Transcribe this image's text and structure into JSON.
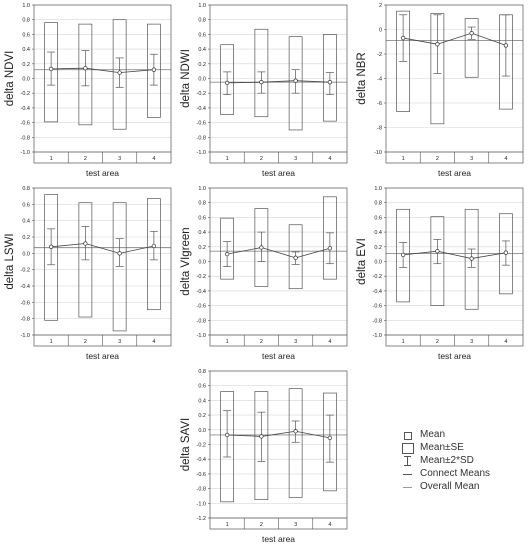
{
  "chart_data": [
    {
      "type": "box",
      "ylabel": "delta NDVI",
      "xlabel": "test area",
      "categories": [
        "1",
        "2",
        "3",
        "4"
      ],
      "yticks": [
        "1.0",
        "0.8",
        "0.6",
        "0.4",
        "0.2",
        "0.0",
        "-0.2",
        "-0.4",
        "-0.6",
        "-0.8",
        "-1.0"
      ],
      "ylim": [
        -1.0,
        1.0
      ],
      "mean": [
        0.13,
        0.14,
        0.08,
        0.12
      ],
      "se_low": [
        -0.09,
        -0.1,
        -0.12,
        -0.09
      ],
      "se_high": [
        0.36,
        0.38,
        0.28,
        0.33
      ],
      "sd_low": [
        -0.59,
        -0.63,
        -0.69,
        -0.53
      ],
      "sd_high": [
        0.76,
        0.74,
        0.8,
        0.74
      ],
      "overall_mean": 0.12
    },
    {
      "type": "box",
      "ylabel": "delta NDWI",
      "xlabel": "test area",
      "categories": [
        "1",
        "2",
        "3",
        "4"
      ],
      "yticks": [
        "1.0",
        "0.8",
        "0.6",
        "0.4",
        "0.2",
        "0.0",
        "-0.2",
        "-0.4",
        "-0.6",
        "-0.8",
        "-1.0"
      ],
      "ylim": [
        -1.0,
        1.0
      ],
      "mean": [
        -0.06,
        -0.05,
        -0.03,
        -0.05
      ],
      "se_low": [
        -0.22,
        -0.2,
        -0.2,
        -0.22
      ],
      "se_high": [
        0.09,
        0.09,
        0.12,
        0.08
      ],
      "sd_low": [
        -0.49,
        -0.52,
        -0.7,
        -0.58
      ],
      "sd_high": [
        0.46,
        0.67,
        0.57,
        0.6
      ],
      "overall_mean": -0.05
    },
    {
      "type": "box",
      "ylabel": "delta NBR",
      "xlabel": "test area",
      "categories": [
        "1",
        "2",
        "3",
        "4"
      ],
      "yticks": [
        "2",
        "0",
        "-2",
        "-4",
        "-6",
        "-8",
        "-10"
      ],
      "ylim": [
        -10,
        2
      ],
      "mean": [
        -0.7,
        -1.2,
        -0.3,
        -1.3
      ],
      "se_low": [
        -2.6,
        -3.6,
        -0.8,
        -3.8
      ],
      "se_high": [
        1.2,
        1.2,
        0.2,
        1.2
      ],
      "sd_low": [
        -6.7,
        -7.7,
        -3.9,
        -6.5
      ],
      "sd_high": [
        1.5,
        1.3,
        0.9,
        1.2
      ],
      "overall_mean": -0.9
    },
    {
      "type": "box",
      "ylabel": "delta LSWI",
      "xlabel": "test area",
      "categories": [
        "1",
        "2",
        "3",
        "4"
      ],
      "yticks": [
        "0.8",
        "0.6",
        "0.4",
        "0.2",
        "0.0",
        "-0.2",
        "-0.4",
        "-0.6",
        "-0.8",
        "-1.0"
      ],
      "ylim": [
        -1.0,
        0.8
      ],
      "mean": [
        0.08,
        0.12,
        0.0,
        0.09
      ],
      "se_low": [
        -0.14,
        -0.08,
        -0.16,
        -0.08
      ],
      "se_high": [
        0.3,
        0.33,
        0.18,
        0.27
      ],
      "sd_low": [
        -0.82,
        -0.78,
        -0.95,
        -0.69
      ],
      "sd_high": [
        0.72,
        0.62,
        0.62,
        0.67
      ],
      "overall_mean": 0.07
    },
    {
      "type": "box",
      "ylabel": "delta VIgreen",
      "xlabel": "test area",
      "categories": [
        "1",
        "2",
        "3",
        "4"
      ],
      "yticks": [
        "1.0",
        "0.8",
        "0.6",
        "0.4",
        "0.2",
        "0.0",
        "-0.2",
        "-0.4",
        "-0.6",
        "-0.8",
        "-1.0"
      ],
      "ylim": [
        -1.0,
        1.0
      ],
      "mean": [
        0.1,
        0.19,
        0.05,
        0.18
      ],
      "se_low": [
        -0.07,
        0.0,
        -0.04,
        -0.03
      ],
      "se_high": [
        0.27,
        0.4,
        0.13,
        0.39
      ],
      "sd_low": [
        -0.24,
        -0.34,
        -0.37,
        -0.24
      ],
      "sd_high": [
        0.59,
        0.72,
        0.5,
        0.88
      ],
      "overall_mean": 0.14
    },
    {
      "type": "box",
      "ylabel": "delta EVI",
      "xlabel": "test area",
      "categories": [
        "1",
        "2",
        "3",
        "4"
      ],
      "yticks": [
        "1.0",
        "0.8",
        "0.6",
        "0.4",
        "0.2",
        "0.0",
        "-0.2",
        "-0.4",
        "-0.6",
        "-0.8",
        "-1.0"
      ],
      "ylim": [
        -1.0,
        1.0
      ],
      "mean": [
        0.09,
        0.14,
        0.04,
        0.12
      ],
      "se_low": [
        -0.08,
        -0.03,
        -0.08,
        -0.05
      ],
      "se_high": [
        0.26,
        0.3,
        0.17,
        0.28
      ],
      "sd_low": [
        -0.55,
        -0.6,
        -0.65,
        -0.44
      ],
      "sd_high": [
        0.71,
        0.61,
        0.71,
        0.65
      ],
      "overall_mean": 0.11
    },
    {
      "type": "box",
      "ylabel": "delta SAVI",
      "xlabel": "test area",
      "categories": [
        "1",
        "2",
        "3",
        "4"
      ],
      "yticks": [
        "0.8",
        "0.6",
        "0.4",
        "0.2",
        "0.0",
        "-0.2",
        "-0.4",
        "-0.6",
        "-0.8",
        "-1.0",
        "-1.2"
      ],
      "ylim": [
        -1.2,
        0.8
      ],
      "mean": [
        -0.07,
        -0.09,
        -0.02,
        -0.11
      ],
      "se_low": [
        -0.37,
        -0.43,
        -0.17,
        -0.44
      ],
      "se_high": [
        0.26,
        0.24,
        0.12,
        0.2
      ],
      "sd_low": [
        -0.98,
        -0.95,
        -0.92,
        -0.83
      ],
      "sd_high": [
        0.52,
        0.52,
        0.56,
        0.5
      ],
      "overall_mean": -0.07
    }
  ],
  "legend": {
    "items": [
      {
        "label": "Mean"
      },
      {
        "label": "Mean±SE"
      },
      {
        "label": "Mean±2*SD"
      },
      {
        "label": "Connect Means"
      },
      {
        "label": "Overall Mean"
      }
    ]
  }
}
